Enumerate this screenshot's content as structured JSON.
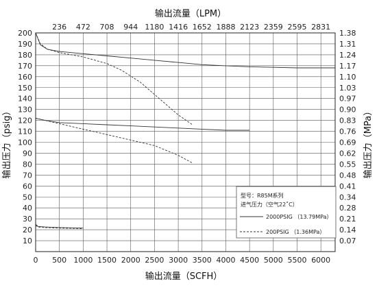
{
  "chart_data": {
    "type": "line",
    "title": "",
    "xlabel_bottom": "输出流量（SCFH）",
    "xlabel_top": "输出流量（LPM）",
    "ylabel_left": "输出压力（psig）",
    "ylabel_right": "输出压力（MPa）",
    "xlim": [
      0,
      6300
    ],
    "ylim": [
      0,
      200
    ],
    "grid": true,
    "x_ticks_bottom": [
      0,
      500,
      1000,
      1500,
      2000,
      2500,
      3000,
      3500,
      4000,
      4500,
      5000,
      5500,
      6000
    ],
    "x_ticks_top": [
      "236",
      "472",
      "708",
      "944",
      "1180",
      "1416",
      "1652",
      "1888",
      "2123",
      "2359",
      "2595",
      "2831"
    ],
    "y_ticks_left": [
      10,
      20,
      30,
      40,
      50,
      60,
      70,
      80,
      90,
      100,
      110,
      120,
      130,
      140,
      150,
      160,
      170,
      180,
      190,
      200
    ],
    "y_ticks_right": [
      "0.07",
      "0.14",
      "0.21",
      "0.28",
      "0.34",
      "0.41",
      "0.48",
      "0.55",
      "0.62",
      "0.69",
      "0.76",
      "0.83",
      "0.90",
      "0.97",
      "1.03",
      "1.10",
      "1.17",
      "1.24",
      "1.31",
      "1.38"
    ],
    "legend": {
      "placement": "bottom-right",
      "model": "型号：R85M系列",
      "inlet": "进气压力（空气22˚C）",
      "entries": [
        {
          "label": "2000PSIG （13.79MPa）",
          "style": "solid"
        },
        {
          "label": "200PSIG （1.36MPa）",
          "style": "dashed"
        }
      ]
    },
    "series": [
      {
        "style": "solid",
        "x": [
          0,
          100,
          250,
          500,
          1000,
          1500,
          2000,
          2500,
          3000,
          3500,
          4000,
          4500,
          5000,
          5500,
          6000,
          6300
        ],
        "y": [
          200,
          189,
          185,
          183,
          181,
          179,
          177,
          175,
          173,
          171,
          170,
          169,
          168.5,
          168,
          168,
          168
        ]
      },
      {
        "style": "dashed",
        "x": [
          0,
          100,
          250,
          500,
          1000,
          1500,
          1800,
          2200,
          2600,
          3000,
          3300
        ],
        "y": [
          200,
          190,
          185,
          182,
          178,
          172,
          166,
          155,
          140,
          125,
          116
        ]
      },
      {
        "style": "solid",
        "x": [
          0,
          200,
          500,
          1000,
          1500,
          2000,
          2500,
          3000,
          3500,
          4000,
          4500
        ],
        "y": [
          122,
          120,
          118,
          117,
          116,
          115,
          114,
          113,
          112,
          111,
          111
        ]
      },
      {
        "style": "dashed",
        "x": [
          0,
          500,
          1000,
          1500,
          2000,
          2500,
          3000,
          3300
        ],
        "y": [
          122,
          117,
          112,
          107,
          102,
          97,
          88,
          81
        ]
      },
      {
        "style": "solid",
        "x": [
          0,
          50,
          200,
          500,
          1000
        ],
        "y": [
          25,
          23,
          22.5,
          22,
          21.5
        ]
      },
      {
        "style": "dashed",
        "x": [
          0,
          50,
          200,
          500,
          1000
        ],
        "y": [
          24,
          22.5,
          22,
          21.5,
          21
        ]
      }
    ]
  }
}
